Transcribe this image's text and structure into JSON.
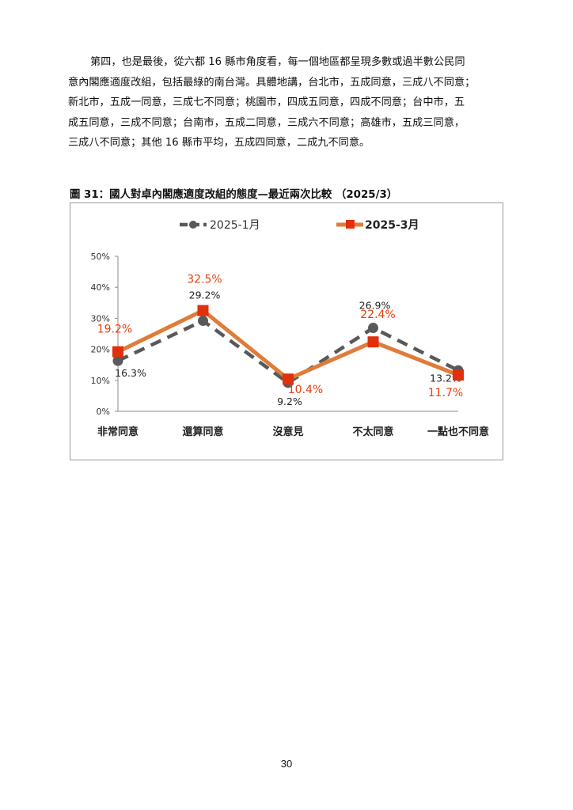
{
  "paragraph": {
    "lines": [
      "第四，也是最後，從六都 16 縣市角度看，每一個地區都呈現多數或過半數公民同",
      "意內閣應適度改組，包括最綠的南台灣。具體地講，台北市，五成同意，三成八不同意；",
      "新北市，五成一同意，三成七不同意；桃園市，四成五同意，四成不同意；台中市，五",
      "成五同意，三成不同意；台南市，五成二同意，三成六不同意；高雄市，五成三同意，",
      "三成八不同意；其他 16 縣市平均，五成四同意，二成九不同意。"
    ]
  },
  "figure": {
    "caption": "圖 31：國人對卓內閣應適度改組的態度—最近兩次比較 （2025/3）"
  },
  "chart_data": {
    "type": "line",
    "categories": [
      "非常同意",
      "還算同意",
      "沒意見",
      "不太同意",
      "一點也不同意"
    ],
    "series": [
      {
        "name": "2025-1月",
        "values": [
          16.3,
          29.2,
          9.2,
          26.9,
          13.2
        ],
        "labels": [
          "16.3%",
          "29.2%",
          "9.2%",
          "26.9%",
          "13.2%"
        ],
        "color": "#595959",
        "style": "dashed",
        "marker": "circle"
      },
      {
        "name": "2025-3月",
        "values": [
          19.2,
          32.5,
          10.4,
          22.4,
          11.7
        ],
        "labels": [
          "19.2%",
          "32.5%",
          "10.4%",
          "22.4%",
          "11.7%"
        ],
        "color": "#e07b39",
        "label_color": "#e8400c",
        "marker_color": "#e0300c",
        "style": "solid",
        "marker": "square"
      }
    ],
    "yticks": [
      "0%",
      "10%",
      "20%",
      "30%",
      "40%",
      "50%"
    ],
    "ylim": [
      0,
      50
    ],
    "legend_position": "top",
    "grid": false
  },
  "page": {
    "number": "30"
  }
}
